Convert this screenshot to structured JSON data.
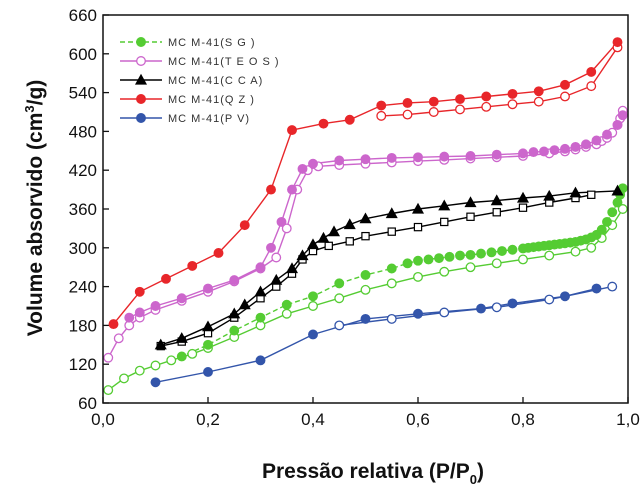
{
  "chart_data": {
    "type": "line",
    "xlabel": "Pressão relativa (P/P",
    "xlabel_sub": "0",
    "xlabel_end": ")",
    "ylabel_main": "Volume absorvido (cm",
    "ylabel_sup": "3",
    "ylabel_end": "/g)",
    "xlim": [
      0.0,
      1.0
    ],
    "ylim": [
      60,
      660
    ],
    "xticks": [
      0.0,
      0.2,
      0.4,
      0.6,
      0.8,
      1.0
    ],
    "xtick_labels": [
      "0,0",
      "0,2",
      "0,4",
      "0,6",
      "0,8",
      "1,0"
    ],
    "yticks": [
      60,
      120,
      180,
      240,
      300,
      360,
      420,
      480,
      540,
      600,
      660
    ],
    "ytick_labels": [
      "60",
      "120",
      "180",
      "240",
      "300",
      "360",
      "420",
      "480",
      "540",
      "600",
      "660"
    ],
    "legend_position": "top-left",
    "series": [
      {
        "name": "MC M-41(S G )",
        "color": "#55cc33",
        "marker": "circle",
        "line_style": "dashed",
        "branches": [
          {
            "fill": "open",
            "x": [
              0.01,
              0.04,
              0.07,
              0.1,
              0.13,
              0.17,
              0.2,
              0.25,
              0.3,
              0.35,
              0.4,
              0.45,
              0.5,
              0.55,
              0.6,
              0.65,
              0.7,
              0.75,
              0.8,
              0.85,
              0.9,
              0.93,
              0.95,
              0.97,
              0.99
            ],
            "y": [
              80,
              98,
              110,
              118,
              126,
              136,
              145,
              162,
              180,
              198,
              210,
              222,
              235,
              245,
              255,
              263,
              270,
              276,
              282,
              288,
              294,
              300,
              315,
              335,
              360
            ]
          },
          {
            "fill": "filled",
            "x": [
              0.99,
              0.985,
              0.98,
              0.97,
              0.96,
              0.95,
              0.94,
              0.93,
              0.92,
              0.91,
              0.9,
              0.89,
              0.88,
              0.87,
              0.86,
              0.85,
              0.84,
              0.83,
              0.82,
              0.81,
              0.8,
              0.78,
              0.76,
              0.74,
              0.72,
              0.7,
              0.68,
              0.66,
              0.64,
              0.62,
              0.6,
              0.58,
              0.55,
              0.5,
              0.45,
              0.4,
              0.35,
              0.3,
              0.25,
              0.2,
              0.15
            ],
            "y": [
              392,
              382,
              370,
              355,
              340,
              328,
              320,
              316,
              313,
              311,
              309,
              308,
              307,
              306,
              305,
              304,
              303,
              302,
              301,
              300,
              299,
              297,
              295,
              293,
              291,
              289,
              288,
              286,
              284,
              282,
              280,
              276,
              268,
              258,
              245,
              225,
              212,
              192,
              172,
              150,
              132
            ]
          }
        ]
      },
      {
        "name": "MC M-41(T E O S )",
        "color": "#cc66cc",
        "marker": "circle",
        "line_style": "solid",
        "branches": [
          {
            "fill": "open",
            "x": [
              0.01,
              0.03,
              0.05,
              0.07,
              0.1,
              0.15,
              0.2,
              0.25,
              0.3,
              0.33,
              0.35,
              0.37,
              0.39,
              0.41,
              0.45,
              0.5,
              0.55,
              0.6,
              0.65,
              0.7,
              0.75,
              0.8,
              0.85,
              0.88,
              0.9,
              0.92,
              0.94,
              0.95,
              0.96,
              0.97,
              0.98,
              0.985,
              0.99
            ],
            "y": [
              130,
              160,
              180,
              192,
              204,
              218,
              232,
              248,
              268,
              285,
              330,
              390,
              420,
              426,
              428,
              430,
              432,
              434,
              436,
              438,
              440,
              442,
              446,
              449,
              452,
              456,
              460,
              465,
              470,
              478,
              490,
              500,
              512
            ]
          },
          {
            "fill": "filled",
            "x": [
              0.99,
              0.98,
              0.96,
              0.94,
              0.92,
              0.9,
              0.88,
              0.86,
              0.84,
              0.82,
              0.8,
              0.75,
              0.7,
              0.65,
              0.6,
              0.55,
              0.5,
              0.45,
              0.4,
              0.38,
              0.36,
              0.34,
              0.32,
              0.3,
              0.25,
              0.2,
              0.15,
              0.1,
              0.07,
              0.05
            ],
            "y": [
              505,
              490,
              475,
              466,
              460,
              456,
              453,
              451,
              449,
              448,
              446,
              444,
              442,
              441,
              440,
              439,
              437,
              435,
              430,
              422,
              390,
              340,
              300,
              270,
              250,
              237,
              222,
              210,
              200,
              192
            ]
          }
        ]
      },
      {
        "name": "MC M-41(C C A)",
        "color": "#000000",
        "marker": "triangle",
        "line_style": "solid",
        "branches": [
          {
            "fill": "open",
            "marker": "square",
            "x": [
              0.11,
              0.15,
              0.2,
              0.25,
              0.3,
              0.33,
              0.36,
              0.38,
              0.4,
              0.43,
              0.47,
              0.5,
              0.55,
              0.6,
              0.65,
              0.7,
              0.75,
              0.8,
              0.85,
              0.9,
              0.93
            ],
            "y": [
              148,
              155,
              168,
              192,
              222,
              240,
              260,
              282,
              295,
              303,
              310,
              318,
              325,
              332,
              340,
              348,
              355,
              362,
              370,
              377,
              382
            ]
          },
          {
            "fill": "filled",
            "x": [
              0.98,
              0.9,
              0.85,
              0.8,
              0.75,
              0.7,
              0.65,
              0.6,
              0.55,
              0.5,
              0.47,
              0.44,
              0.42,
              0.4,
              0.38,
              0.36,
              0.33,
              0.3,
              0.27,
              0.25,
              0.2,
              0.15,
              0.11
            ],
            "y": [
              388,
              385,
              380,
              377,
              373,
              370,
              365,
              360,
              353,
              345,
              336,
              325,
              315,
              305,
              288,
              268,
              250,
              232,
              212,
              198,
              178,
              160,
              150
            ]
          }
        ]
      },
      {
        "name": "MC M-41(Q Z )",
        "color": "#e8262a",
        "marker": "circle",
        "line_style": "solid",
        "branches": [
          {
            "fill": "open",
            "x": [
              0.53,
              0.58,
              0.63,
              0.68,
              0.73,
              0.78,
              0.83,
              0.88,
              0.93,
              0.98
            ],
            "y": [
              504,
              506,
              510,
              514,
              518,
              522,
              526,
              534,
              550,
              610
            ]
          },
          {
            "fill": "filled",
            "x": [
              0.02,
              0.07,
              0.12,
              0.17,
              0.22,
              0.27,
              0.32,
              0.36,
              0.42,
              0.47,
              0.53,
              0.58,
              0.63,
              0.68,
              0.73,
              0.78,
              0.83,
              0.88,
              0.93,
              0.98
            ],
            "y": [
              182,
              232,
              252,
              272,
              292,
              335,
              390,
              482,
              492,
              498,
              520,
              524,
              526,
              530,
              534,
              538,
              542,
              552,
              572,
              618
            ]
          }
        ]
      },
      {
        "name": "MC M-41(P V)",
        "color": "#3355aa",
        "marker": "circle",
        "line_style": "solid",
        "branches": [
          {
            "fill": "filled",
            "x": [
              0.1,
              0.2,
              0.3,
              0.4,
              0.5,
              0.6,
              0.72,
              0.78,
              0.88,
              0.94
            ],
            "y": [
              92,
              108,
              126,
              166,
              190,
              198,
              206,
              214,
              225,
              237
            ]
          },
          {
            "fill": "open",
            "x": [
              0.45,
              0.55,
              0.65,
              0.75,
              0.85,
              0.97
            ],
            "y": [
              180,
              190,
              200,
              208,
              220,
              240
            ]
          }
        ]
      }
    ]
  }
}
